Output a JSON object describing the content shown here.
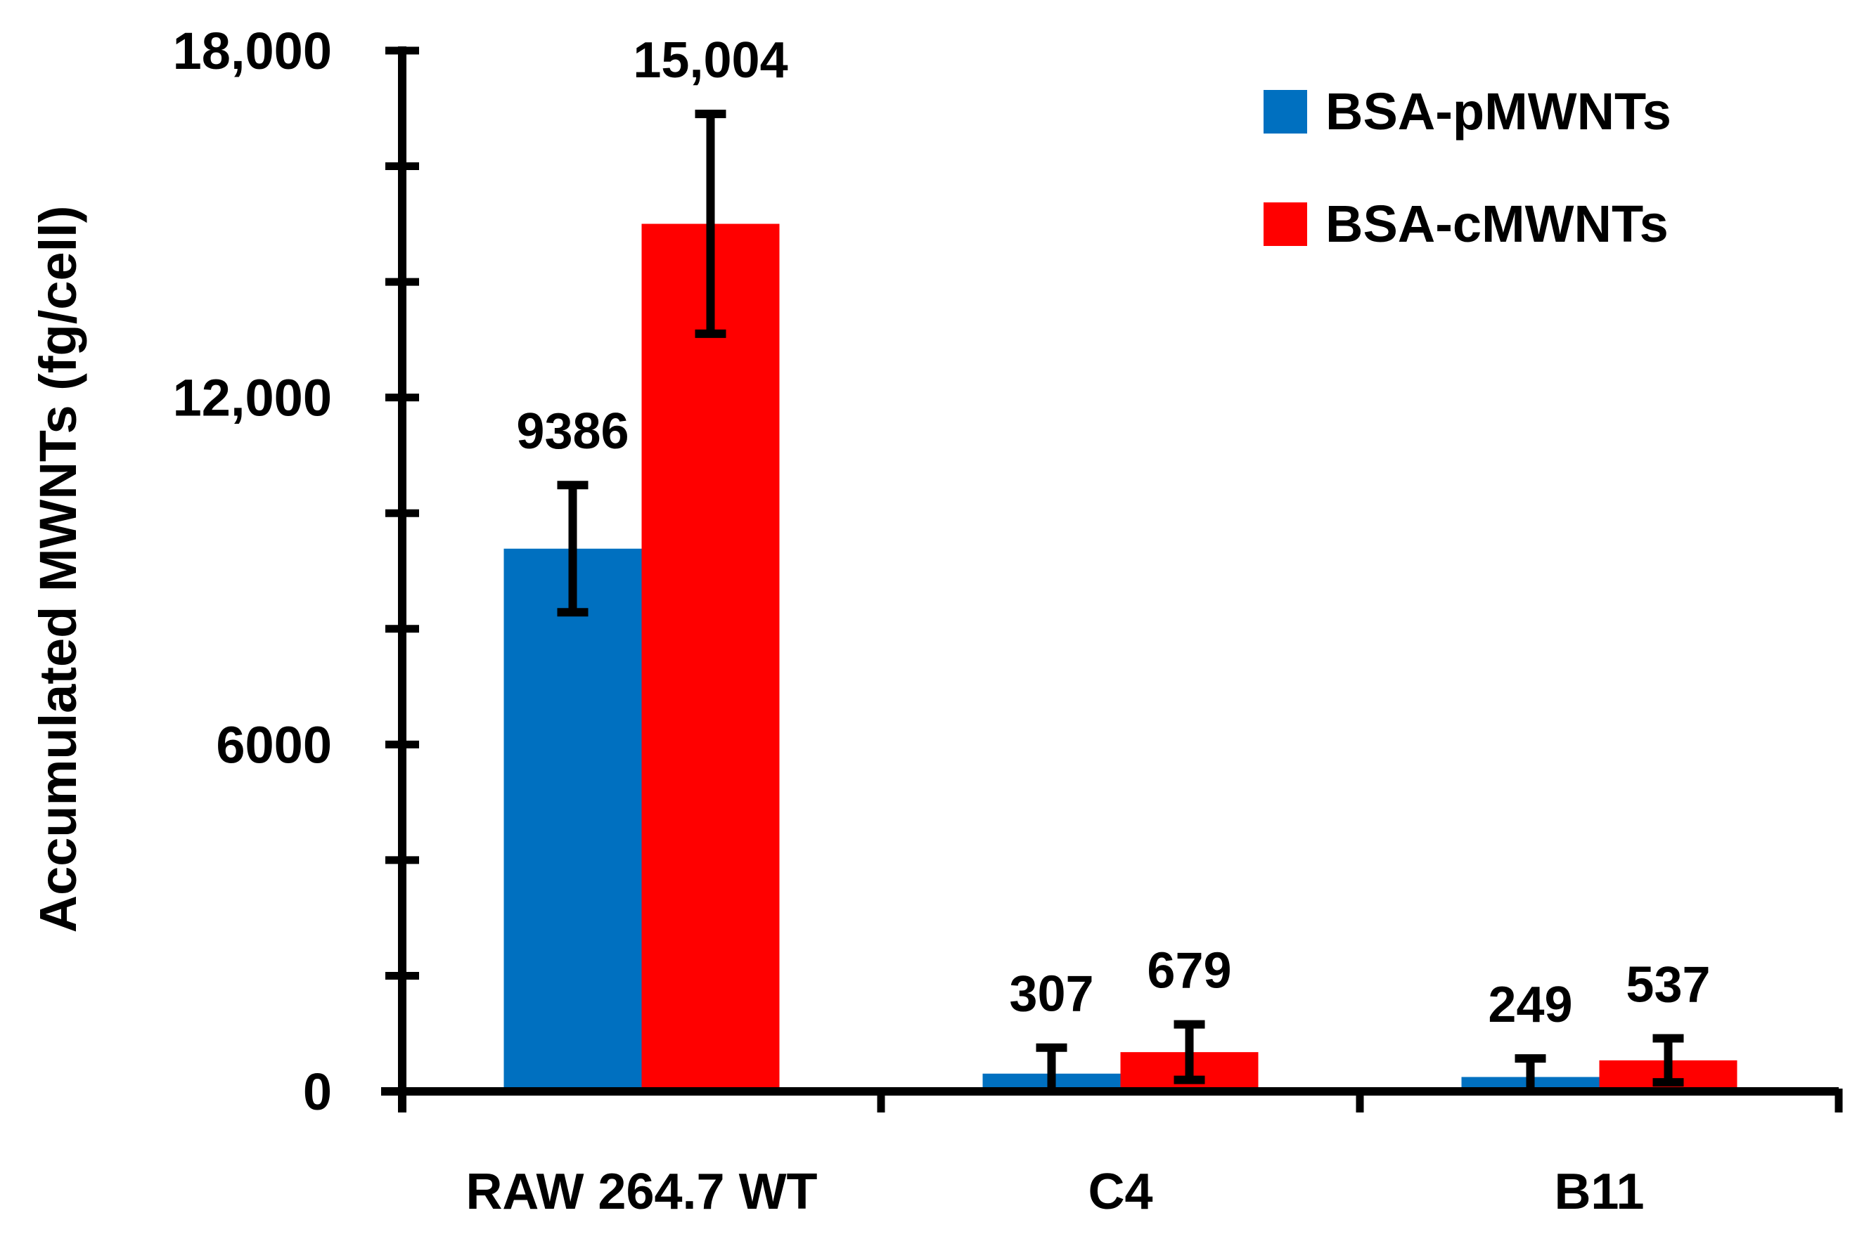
{
  "chart_data": {
    "type": "bar",
    "title": "",
    "xlabel": "",
    "ylabel": "Accumulated MWNTs (fg/cell)",
    "ylim": [
      0,
      18000
    ],
    "yticks": [
      {
        "value": 0,
        "label": "0"
      },
      {
        "value": 6000,
        "label": "6000"
      },
      {
        "value": 12000,
        "label": "12,000"
      },
      {
        "value": 18000,
        "label": "18,000"
      }
    ],
    "minor_tick_step": 2000,
    "grid": false,
    "legend_position": "top-right",
    "categories": [
      "RAW 264.7 WT",
      "C4",
      "B11"
    ],
    "series": [
      {
        "name": "BSA-pMWNTs",
        "color": "#0070C0",
        "values": [
          9386,
          307,
          249
        ],
        "labels": [
          "9386",
          "307",
          "249"
        ],
        "error": [
          1100,
          450,
          320
        ]
      },
      {
        "name": "BSA-cMWNTs",
        "color": "#FF0000",
        "values": [
          15004,
          679,
          537
        ],
        "labels": [
          "15,004",
          "679",
          "537"
        ],
        "error": [
          1900,
          480,
          380
        ]
      }
    ]
  }
}
